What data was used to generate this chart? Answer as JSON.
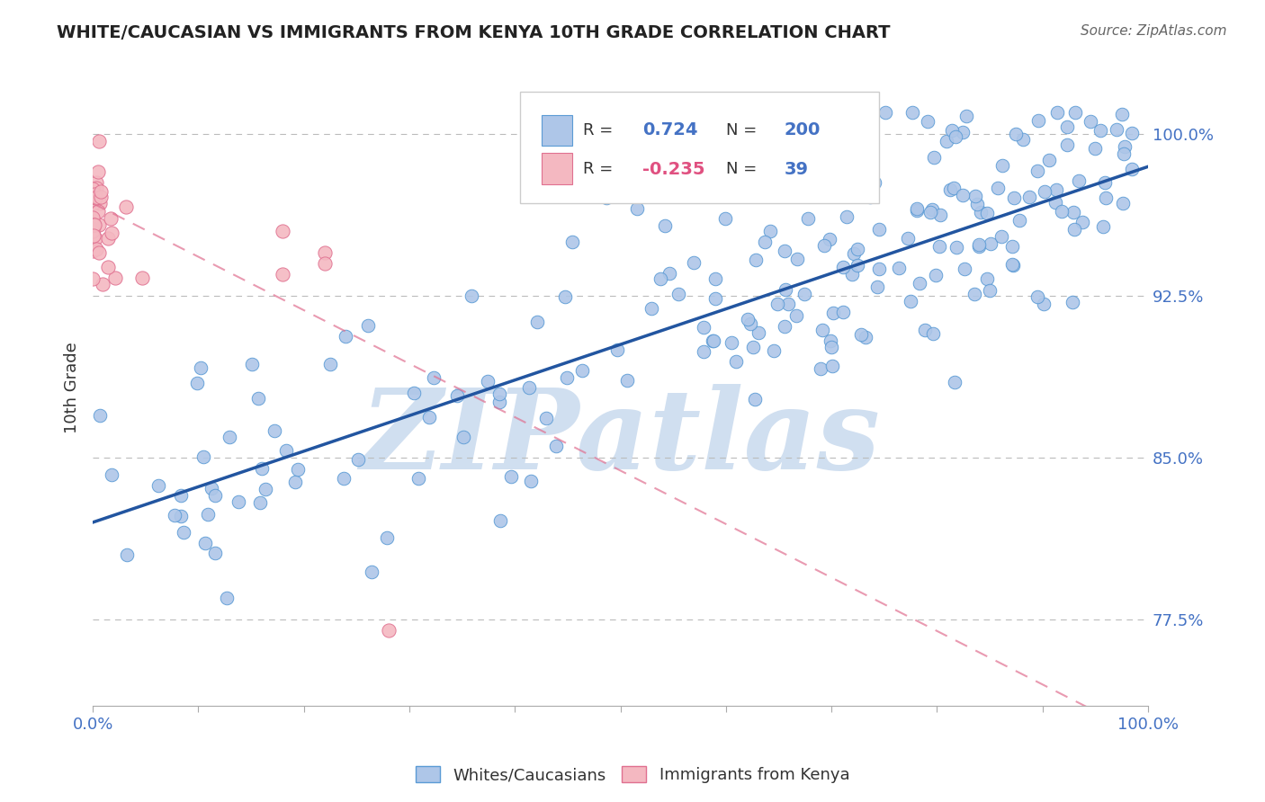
{
  "title": "WHITE/CAUCASIAN VS IMMIGRANTS FROM KENYA 10TH GRADE CORRELATION CHART",
  "source_text": "Source: ZipAtlas.com",
  "ylabel": "10th Grade",
  "xlim": [
    0.0,
    1.0
  ],
  "ylim": [
    0.735,
    1.03
  ],
  "ytick_labels": [
    "77.5%",
    "85.0%",
    "92.5%",
    "100.0%"
  ],
  "ytick_vals": [
    0.775,
    0.85,
    0.925,
    1.0
  ],
  "legend_labels": [
    "Whites/Caucasians",
    "Immigrants from Kenya"
  ],
  "blue_R": "0.724",
  "blue_N": "200",
  "pink_R": "-0.235",
  "pink_N": "39",
  "blue_color": "#aec6e8",
  "blue_edge": "#5b9bd5",
  "blue_line_color": "#2255a0",
  "pink_color": "#f4b8c1",
  "pink_edge": "#e07090",
  "pink_line_color": "#e07090",
  "watermark": "ZIPatlas",
  "watermark_color": "#d0dff0",
  "background_color": "#ffffff",
  "title_color": "#222222",
  "source_color": "#666666",
  "axis_label_color": "#333333",
  "tick_color": "#4472c4",
  "legend_R_color_blue": "#4472c4",
  "legend_R_color_pink": "#e05080",
  "legend_N_color": "#4472c4",
  "blue_trendline": [
    0.0,
    0.82,
    1.0,
    0.985
  ],
  "pink_trendline": [
    0.0,
    0.968,
    1.0,
    0.72
  ]
}
